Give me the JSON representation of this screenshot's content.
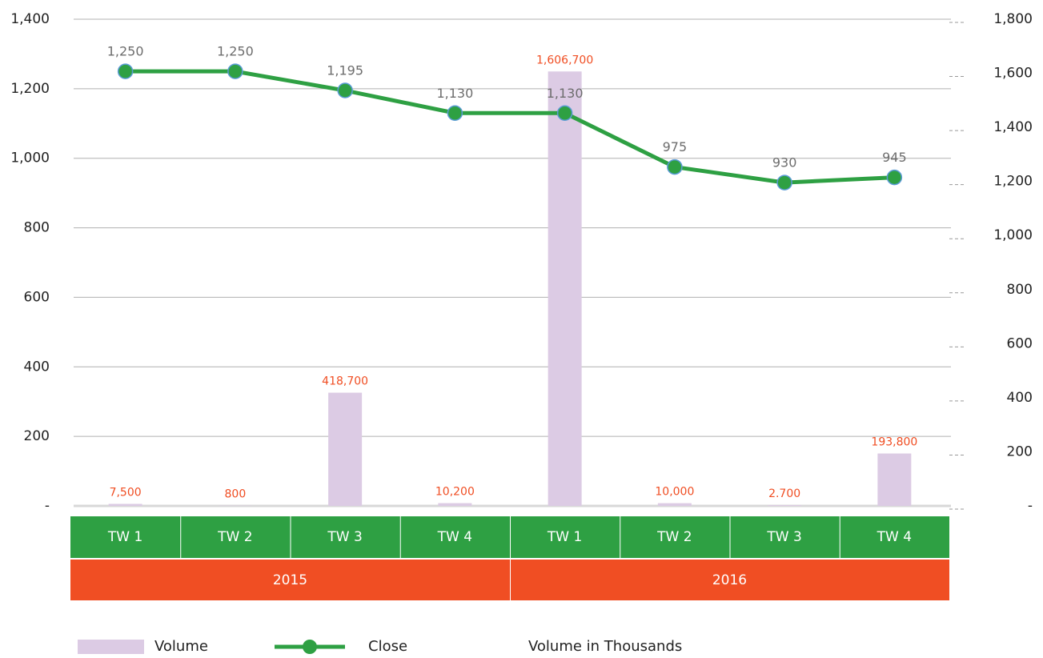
{
  "chart_data": {
    "type": "bar_line",
    "categories": [
      "TW 1",
      "TW 2",
      "TW 3",
      "TW 4",
      "TW 1",
      "TW 2",
      "TW 3",
      "TW 4"
    ],
    "category_groups": [
      "2015",
      "2016"
    ],
    "series": [
      {
        "name": "Volume",
        "type": "bar",
        "axis": "y2",
        "color": "#dccbe4",
        "values": [
          7.5,
          0.8,
          418.7,
          10.2,
          1606.7,
          10.0,
          2.7,
          193.8
        ],
        "value_labels": [
          "7,500",
          "800",
          "418,700",
          "10,200",
          "1,606,700",
          "10,000",
          "2.700",
          "193,800"
        ]
      },
      {
        "name": "Close",
        "type": "line",
        "color": "#2ea043",
        "values": [
          1250,
          1250,
          1195,
          1130,
          1130,
          975,
          930,
          945
        ],
        "value_labels": [
          "1,250",
          "1,250",
          "1,195",
          "1,130",
          "1,130",
          "975",
          "930",
          "945"
        ]
      }
    ],
    "annotation": "Volume in Thousands",
    "ylim": [
      0,
      1400
    ],
    "yticks": [
      {
        "value": 0,
        "label": "-"
      },
      200,
      400,
      600,
      800,
      {
        "value": 1000,
        "label": "1,000"
      },
      {
        "value": 1200,
        "label": "1,200"
      },
      {
        "value": 1400,
        "label": "1,400"
      }
    ],
    "y2lim": [
      0,
      1800
    ],
    "y2ticks": [
      {
        "value": 0,
        "label": "-"
      },
      200,
      400,
      600,
      800,
      {
        "value": 1000,
        "label": "1,000"
      },
      {
        "value": 1200,
        "label": "1,200"
      },
      {
        "value": 1400,
        "label": "1,400"
      },
      {
        "value": 1600,
        "label": "1,600"
      },
      {
        "value": 1800,
        "label": "1,800"
      }
    ],
    "grid": true,
    "category_color": "#2ea043",
    "group_color": "#f04e23"
  }
}
